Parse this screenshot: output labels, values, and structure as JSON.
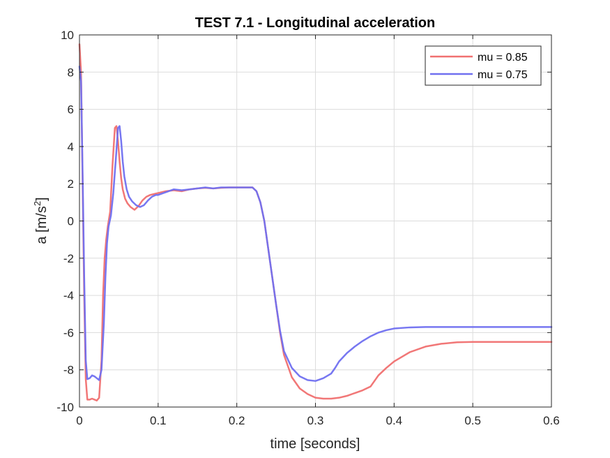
{
  "chart_data": {
    "type": "line",
    "title": "TEST 7.1 - Longitudinal acceleration",
    "xlabel": "time [seconds]",
    "ylabel_main": "a [m/s",
    "ylabel_sup": "2",
    "ylabel_close": "]",
    "xlim": [
      0,
      0.6
    ],
    "ylim": [
      -10,
      10
    ],
    "xticks": [
      0,
      0.1,
      0.2,
      0.3,
      0.4,
      0.5,
      0.6
    ],
    "xtick_labels": [
      "0",
      "0.1",
      "0.2",
      "0.3",
      "0.4",
      "0.5",
      "0.6"
    ],
    "yticks": [
      -10,
      -8,
      -6,
      -4,
      -2,
      0,
      2,
      4,
      6,
      8,
      10
    ],
    "ytick_labels": [
      "-10",
      "-8",
      "-6",
      "-4",
      "-2",
      "0",
      "2",
      "4",
      "6",
      "8",
      "10"
    ],
    "grid": true,
    "legend_position": "top-right",
    "series": [
      {
        "name": "mu = 0.85",
        "color": "#f07070",
        "x": [
          0,
          0.002,
          0.004,
          0.006,
          0.008,
          0.01,
          0.013,
          0.016,
          0.019,
          0.022,
          0.025,
          0.028,
          0.03,
          0.032,
          0.034,
          0.036,
          0.039,
          0.042,
          0.045,
          0.047,
          0.049,
          0.051,
          0.053,
          0.055,
          0.058,
          0.061,
          0.065,
          0.07,
          0.075,
          0.08,
          0.085,
          0.09,
          0.095,
          0.1,
          0.11,
          0.12,
          0.13,
          0.14,
          0.15,
          0.16,
          0.17,
          0.18,
          0.19,
          0.2,
          0.21,
          0.22,
          0.225,
          0.23,
          0.235,
          0.24,
          0.245,
          0.25,
          0.255,
          0.26,
          0.27,
          0.28,
          0.29,
          0.3,
          0.31,
          0.32,
          0.33,
          0.34,
          0.35,
          0.36,
          0.37,
          0.375,
          0.38,
          0.39,
          0.4,
          0.42,
          0.44,
          0.46,
          0.48,
          0.5,
          0.52,
          0.55,
          0.6
        ],
        "y": [
          9.5,
          8.0,
          2.0,
          -4.0,
          -8.5,
          -9.6,
          -9.6,
          -9.55,
          -9.6,
          -9.65,
          -9.5,
          -7.5,
          -4.0,
          -2.0,
          -1.0,
          -0.3,
          0.5,
          3.0,
          5.0,
          5.1,
          4.3,
          3.2,
          2.3,
          1.7,
          1.2,
          0.95,
          0.75,
          0.6,
          0.8,
          1.1,
          1.3,
          1.4,
          1.45,
          1.5,
          1.6,
          1.65,
          1.6,
          1.7,
          1.75,
          1.78,
          1.75,
          1.78,
          1.8,
          1.8,
          1.8,
          1.8,
          1.6,
          1.0,
          0.0,
          -1.5,
          -3.0,
          -4.5,
          -6.0,
          -7.2,
          -8.4,
          -9.0,
          -9.3,
          -9.5,
          -9.55,
          -9.55,
          -9.5,
          -9.4,
          -9.25,
          -9.1,
          -8.9,
          -8.6,
          -8.3,
          -7.9,
          -7.55,
          -7.05,
          -6.75,
          -6.6,
          -6.52,
          -6.5,
          -6.5,
          -6.5,
          -6.5
        ]
      },
      {
        "name": "mu = 0.75",
        "color": "#7070f0",
        "x": [
          0,
          0.002,
          0.004,
          0.006,
          0.008,
          0.01,
          0.013,
          0.016,
          0.019,
          0.022,
          0.025,
          0.028,
          0.031,
          0.033,
          0.035,
          0.037,
          0.04,
          0.043,
          0.046,
          0.049,
          0.051,
          0.053,
          0.055,
          0.057,
          0.06,
          0.063,
          0.067,
          0.072,
          0.077,
          0.082,
          0.087,
          0.092,
          0.097,
          0.1,
          0.11,
          0.12,
          0.13,
          0.14,
          0.15,
          0.16,
          0.17,
          0.18,
          0.19,
          0.2,
          0.21,
          0.22,
          0.225,
          0.23,
          0.235,
          0.24,
          0.245,
          0.25,
          0.255,
          0.26,
          0.27,
          0.28,
          0.29,
          0.3,
          0.31,
          0.32,
          0.325,
          0.33,
          0.34,
          0.35,
          0.36,
          0.37,
          0.38,
          0.39,
          0.4,
          0.42,
          0.44,
          0.46,
          0.48,
          0.5,
          0.55,
          0.6
        ],
        "y": [
          8.3,
          7.5,
          2.5,
          -3.0,
          -7.5,
          -8.5,
          -8.45,
          -8.3,
          -8.35,
          -8.45,
          -8.55,
          -8.0,
          -5.5,
          -3.0,
          -1.2,
          -0.3,
          0.3,
          1.5,
          3.2,
          5.0,
          5.1,
          4.3,
          3.2,
          2.4,
          1.7,
          1.3,
          1.05,
          0.85,
          0.75,
          0.85,
          1.1,
          1.3,
          1.4,
          1.4,
          1.55,
          1.7,
          1.65,
          1.7,
          1.75,
          1.8,
          1.75,
          1.8,
          1.8,
          1.8,
          1.8,
          1.8,
          1.6,
          1.0,
          0.0,
          -1.5,
          -3.0,
          -4.5,
          -5.9,
          -7.0,
          -7.9,
          -8.35,
          -8.55,
          -8.6,
          -8.45,
          -8.2,
          -7.9,
          -7.55,
          -7.1,
          -6.75,
          -6.45,
          -6.2,
          -6.0,
          -5.87,
          -5.78,
          -5.72,
          -5.7,
          -5.7,
          -5.7,
          -5.7,
          -5.7,
          -5.7
        ]
      }
    ]
  }
}
